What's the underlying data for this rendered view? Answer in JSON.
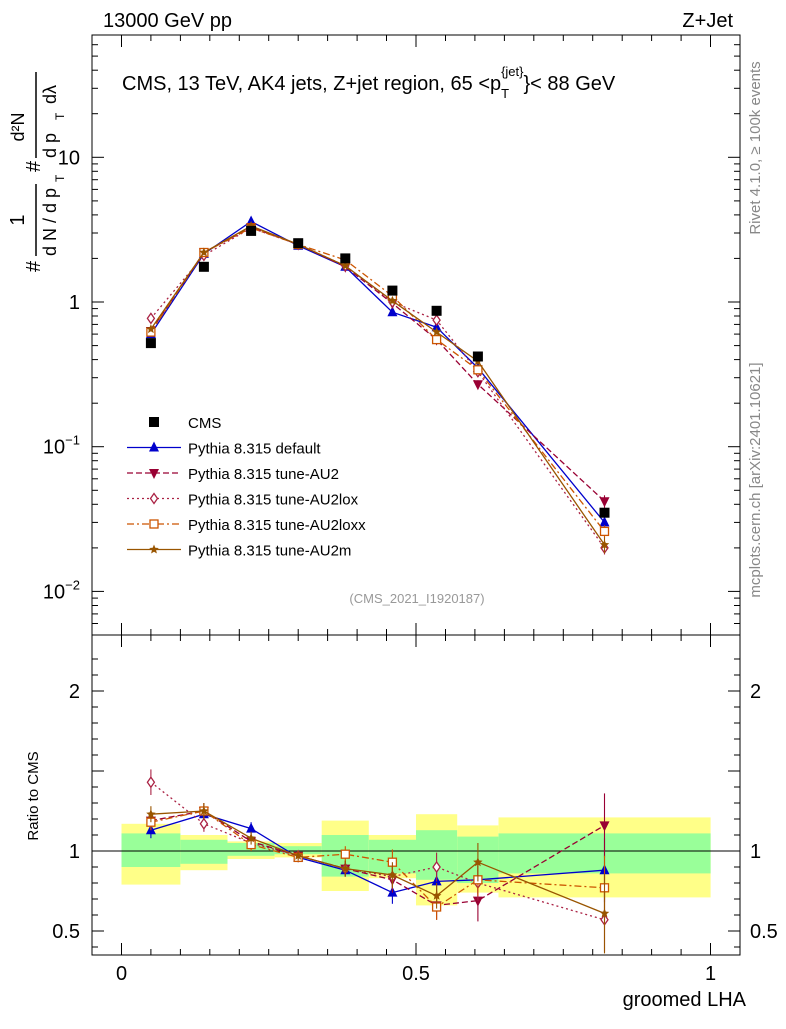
{
  "chart_data": {
    "type": "line",
    "header_left": "13000 GeV pp",
    "header_right": "Z+Jet",
    "title": "CMS, 13 TeV, AK4 jets, Z+jet region, 65 <p",
    "title_sub": "T",
    "title_sup": "{jet}",
    "title_end": "}< 88 GeV",
    "ylabel": "d N / d p_T (1/N dN/dpT ... dλ)",
    "ylabel_parts": {
      "hash1": "#",
      "one": "1",
      "dn": "d N / d p",
      "t1": "T",
      "hash2": "#",
      "d2n": "d²N",
      "dpt": "d p",
      "t2": "T",
      "dlambda": "dλ"
    },
    "xlabel": "groomed LHA",
    "ratio_ylabel": "Ratio to CMS",
    "analysis_id": "(CMS_2021_I1920187)",
    "rivet_label": "Rivet 4.1.0, ≥ 100k events",
    "mcplots_label": "mcplots.cern.ch [arXiv:2401.10621]",
    "xlim": [
      -0.05,
      1.05
    ],
    "ylim_log": [
      0.005,
      70
    ],
    "ratio_ylim": [
      0.35,
      2.35
    ],
    "x_ticks": [
      {
        "v": 0,
        "label": "0"
      },
      {
        "v": 0.5,
        "label": "0.5"
      },
      {
        "v": 1,
        "label": "1"
      }
    ],
    "y_ticks": [
      {
        "v": 10,
        "base": "10",
        "exp": ""
      },
      {
        "v": 1,
        "base": "1",
        "exp": ""
      },
      {
        "v": 0.1,
        "base": "10",
        "exp": "−1"
      },
      {
        "v": 0.01,
        "base": "10",
        "exp": "−2"
      }
    ],
    "ratio_ticks": [
      {
        "v": 2,
        "label": "2"
      },
      {
        "v": 1,
        "label": "1"
      },
      {
        "v": 0.5,
        "label": "0.5"
      }
    ],
    "data": {
      "name": "CMS",
      "x": [
        0.05,
        0.14,
        0.22,
        0.3,
        0.38,
        0.46,
        0.535,
        0.605,
        0.82
      ],
      "y": [
        0.52,
        1.75,
        3.1,
        2.55,
        2.0,
        1.2,
        0.87,
        0.42,
        0.035
      ],
      "bins": [
        [
          0.0,
          0.1
        ],
        [
          0.1,
          0.18
        ],
        [
          0.18,
          0.26
        ],
        [
          0.26,
          0.34
        ],
        [
          0.34,
          0.42
        ],
        [
          0.42,
          0.5
        ],
        [
          0.5,
          0.57
        ],
        [
          0.57,
          0.64
        ],
        [
          0.64,
          1.0
        ]
      ],
      "band_inner": [
        [
          0.9,
          1.11
        ],
        [
          0.92,
          1.07
        ],
        [
          0.97,
          1.05
        ],
        [
          0.98,
          1.03
        ],
        [
          0.84,
          1.1
        ],
        [
          0.86,
          1.07
        ],
        [
          0.82,
          1.13
        ],
        [
          0.8,
          1.09
        ],
        [
          0.86,
          1.11
        ]
      ],
      "band_outer": [
        [
          0.79,
          1.17
        ],
        [
          0.88,
          1.1
        ],
        [
          0.95,
          1.06
        ],
        [
          0.96,
          1.05
        ],
        [
          0.75,
          1.19
        ],
        [
          0.83,
          1.1
        ],
        [
          0.66,
          1.23
        ],
        [
          0.74,
          1.16
        ],
        [
          0.71,
          1.21
        ]
      ]
    },
    "series": [
      {
        "name": "Pythia 8.315 default",
        "color": "#0000cc",
        "dash": "",
        "marker": "triangle-up",
        "x": [
          0.05,
          0.14,
          0.22,
          0.3,
          0.38,
          0.46,
          0.535,
          0.605,
          0.82
        ],
        "y": [
          0.6,
          2.15,
          3.6,
          2.45,
          1.75,
          0.85,
          0.67,
          0.35,
          0.03
        ],
        "ratio": [
          1.13,
          1.23,
          1.14,
          0.96,
          0.88,
          0.74,
          0.81,
          0.82,
          0.88
        ],
        "err": [
          0.05,
          0.05,
          0.04,
          0.03,
          0.04,
          0.07,
          0.07,
          0.09,
          0.2
        ]
      },
      {
        "name": "Pythia 8.315 tune-AU2",
        "color": "#990033",
        "dash": "6,3",
        "marker": "triangle-down",
        "x": [
          0.05,
          0.14,
          0.22,
          0.3,
          0.38,
          0.46,
          0.535,
          0.605,
          0.82
        ],
        "y": [
          0.63,
          2.2,
          3.3,
          2.5,
          1.75,
          0.98,
          0.55,
          0.27,
          0.042
        ],
        "ratio": [
          1.19,
          1.25,
          1.06,
          0.97,
          0.89,
          0.82,
          0.66,
          0.69,
          1.16
        ],
        "err": [
          0.06,
          0.05,
          0.04,
          0.03,
          0.05,
          0.08,
          0.09,
          0.13,
          0.2
        ]
      },
      {
        "name": "Pythia 8.315 tune-AU2lox",
        "color": "#aa2244",
        "dash": "2,3",
        "marker": "diamond-open",
        "x": [
          0.05,
          0.14,
          0.22,
          0.3,
          0.38,
          0.46,
          0.535,
          0.605,
          0.82
        ],
        "y": [
          0.77,
          2.1,
          3.25,
          2.5,
          1.78,
          1.0,
          0.75,
          0.33,
          0.02
        ],
        "ratio": [
          1.43,
          1.17,
          1.05,
          0.97,
          0.89,
          0.84,
          0.9,
          0.8,
          0.57
        ],
        "err": [
          0.08,
          0.05,
          0.04,
          0.03,
          0.05,
          0.08,
          0.09,
          0.11,
          0.2
        ]
      },
      {
        "name": "Pythia 8.315 tune-AU2loxx",
        "color": "#cc5500",
        "dash": "7,3,2,3",
        "marker": "square-open",
        "x": [
          0.05,
          0.14,
          0.22,
          0.3,
          0.38,
          0.46,
          0.535,
          0.605,
          0.82
        ],
        "y": [
          0.62,
          2.2,
          3.25,
          2.5,
          1.95,
          1.1,
          0.55,
          0.34,
          0.026
        ],
        "ratio": [
          1.18,
          1.25,
          1.04,
          0.96,
          0.98,
          0.93,
          0.65,
          0.82,
          0.77
        ],
        "err": [
          0.05,
          0.05,
          0.04,
          0.03,
          0.05,
          0.08,
          0.08,
          0.1,
          0.2
        ]
      },
      {
        "name": "Pythia 8.315 tune-AU2m",
        "color": "#995500",
        "dash": "",
        "marker": "star",
        "x": [
          0.05,
          0.14,
          0.22,
          0.3,
          0.38,
          0.46,
          0.535,
          0.605,
          0.82
        ],
        "y": [
          0.65,
          2.2,
          3.35,
          2.5,
          1.78,
          1.02,
          0.62,
          0.39,
          0.021
        ],
        "ratio": [
          1.23,
          1.25,
          1.08,
          0.97,
          0.89,
          0.85,
          0.72,
          0.93,
          0.61
        ],
        "err": [
          0.05,
          0.05,
          0.04,
          0.03,
          0.05,
          0.08,
          0.08,
          0.12,
          0.25
        ]
      }
    ]
  }
}
